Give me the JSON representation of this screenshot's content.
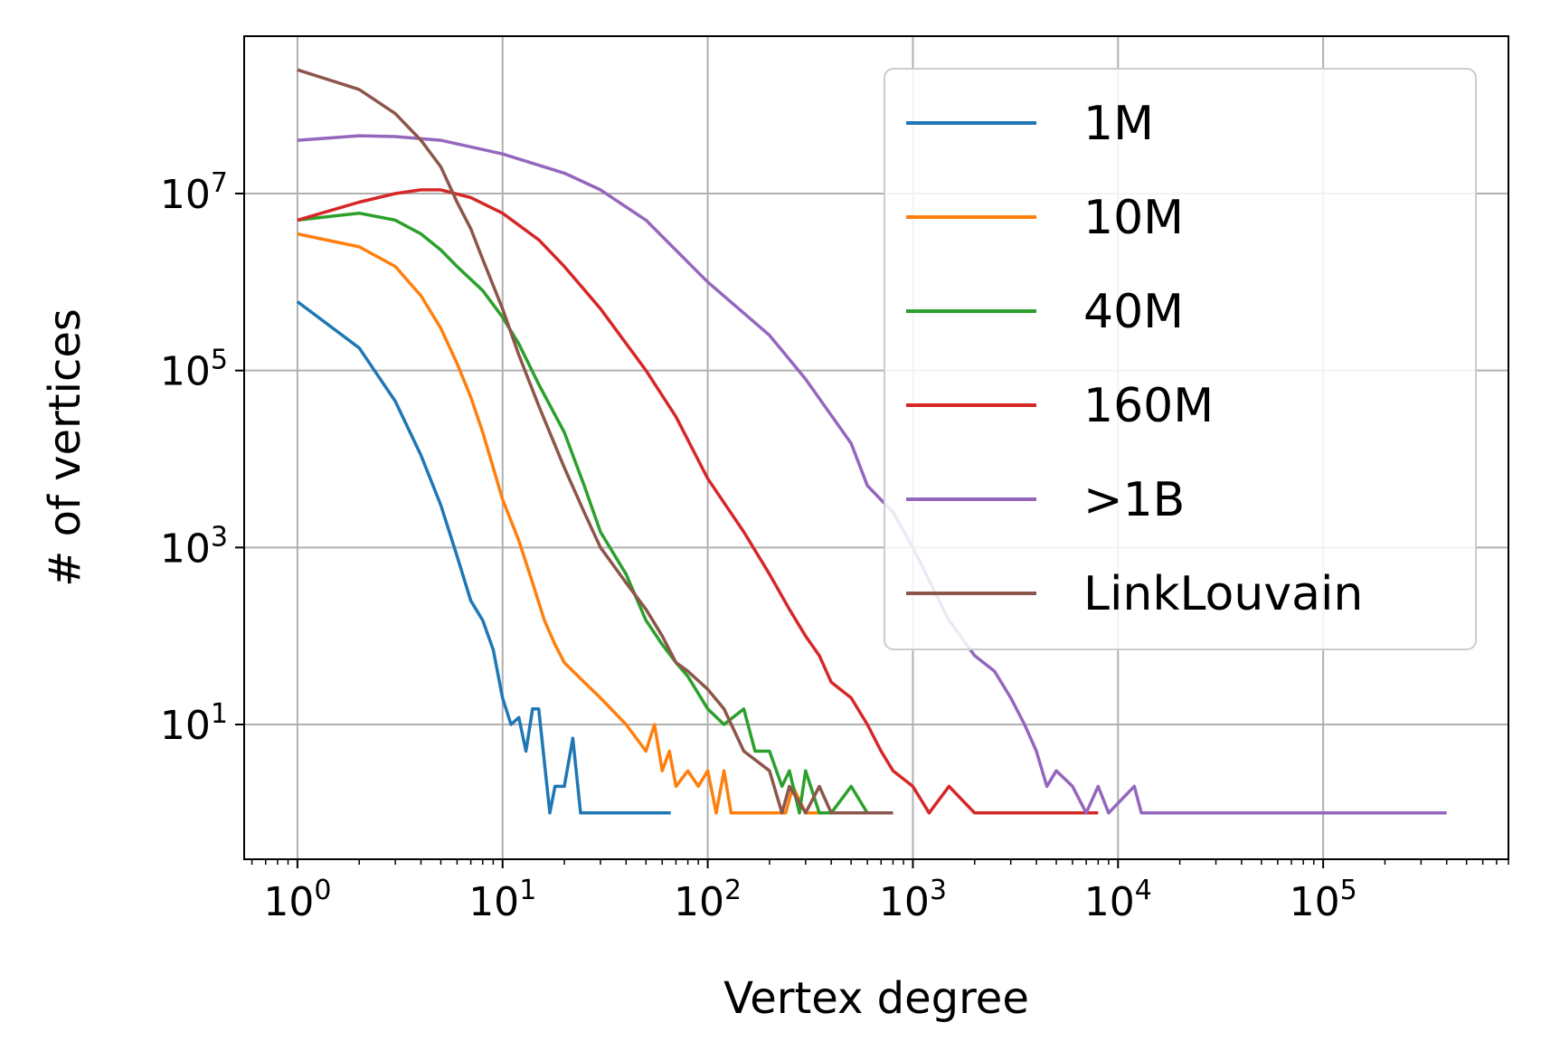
{
  "chart_data": {
    "type": "line",
    "title": "",
    "xlabel": "Vertex degree",
    "ylabel": "# of vertices",
    "xscale": "log",
    "yscale": "log",
    "xlim": [
      0.55,
      800000
    ],
    "ylim": [
      0.3,
      600000000
    ],
    "grid": true,
    "legend_position": "top-right",
    "x_ticks": [
      {
        "value": 1,
        "base": "10",
        "exp": "0"
      },
      {
        "value": 10,
        "base": "10",
        "exp": "1"
      },
      {
        "value": 100,
        "base": "10",
        "exp": "2"
      },
      {
        "value": 1000,
        "base": "10",
        "exp": "3"
      },
      {
        "value": 10000,
        "base": "10",
        "exp": "4"
      },
      {
        "value": 100000,
        "base": "10",
        "exp": "5"
      }
    ],
    "y_ticks": [
      {
        "value": 10,
        "base": "10",
        "exp": "1"
      },
      {
        "value": 1000,
        "base": "10",
        "exp": "3"
      },
      {
        "value": 100000,
        "base": "10",
        "exp": "5"
      },
      {
        "value": 10000000,
        "base": "10",
        "exp": "7"
      }
    ],
    "series": [
      {
        "name": "1M",
        "color": "#1f77b4",
        "points": [
          [
            1,
            600000
          ],
          [
            2,
            180000
          ],
          [
            3,
            45000
          ],
          [
            4,
            11000
          ],
          [
            5,
            3000
          ],
          [
            6,
            800
          ],
          [
            7,
            250
          ],
          [
            8,
            150
          ],
          [
            9,
            70
          ],
          [
            10,
            20
          ],
          [
            11,
            10
          ],
          [
            12,
            12
          ],
          [
            13,
            5
          ],
          [
            14,
            15
          ],
          [
            15,
            15
          ],
          [
            17,
            1
          ],
          [
            18,
            2
          ],
          [
            20,
            2
          ],
          [
            22,
            7
          ],
          [
            24,
            1
          ],
          [
            26,
            1
          ],
          [
            66,
            1
          ]
        ]
      },
      {
        "name": "10M",
        "color": "#ff7f0e",
        "points": [
          [
            1,
            3500000
          ],
          [
            2,
            2500000
          ],
          [
            3,
            1500000
          ],
          [
            4,
            700000
          ],
          [
            5,
            300000
          ],
          [
            6,
            120000
          ],
          [
            7,
            50000
          ],
          [
            8,
            20000
          ],
          [
            9,
            8000
          ],
          [
            10,
            3500
          ],
          [
            12,
            1200
          ],
          [
            14,
            400
          ],
          [
            16,
            150
          ],
          [
            18,
            80
          ],
          [
            20,
            50
          ],
          [
            25,
            30
          ],
          [
            30,
            20
          ],
          [
            40,
            10
          ],
          [
            50,
            5
          ],
          [
            55,
            10
          ],
          [
            60,
            3
          ],
          [
            65,
            5
          ],
          [
            70,
            2
          ],
          [
            80,
            3
          ],
          [
            90,
            2
          ],
          [
            100,
            3
          ],
          [
            110,
            1
          ],
          [
            120,
            3
          ],
          [
            130,
            1
          ],
          [
            240,
            1
          ],
          [
            260,
            2
          ],
          [
            300,
            1
          ],
          [
            500,
            1
          ]
        ]
      },
      {
        "name": "40M",
        "color": "#2ca02c",
        "points": [
          [
            1,
            5000000
          ],
          [
            2,
            6000000
          ],
          [
            3,
            5000000
          ],
          [
            4,
            3500000
          ],
          [
            5,
            2300000
          ],
          [
            6,
            1500000
          ],
          [
            8,
            800000
          ],
          [
            10,
            400000
          ],
          [
            12,
            200000
          ],
          [
            15,
            70000
          ],
          [
            20,
            20000
          ],
          [
            25,
            5000
          ],
          [
            30,
            1500
          ],
          [
            40,
            500
          ],
          [
            50,
            150
          ],
          [
            60,
            80
          ],
          [
            70,
            50
          ],
          [
            80,
            35
          ],
          [
            100,
            15
          ],
          [
            120,
            10
          ],
          [
            150,
            15
          ],
          [
            170,
            5
          ],
          [
            200,
            5
          ],
          [
            230,
            2
          ],
          [
            250,
            3
          ],
          [
            280,
            1
          ],
          [
            300,
            3
          ],
          [
            350,
            1
          ],
          [
            400,
            1
          ],
          [
            500,
            2
          ],
          [
            600,
            1
          ],
          [
            800,
            1
          ]
        ]
      },
      {
        "name": "160M",
        "color": "#d62728",
        "points": [
          [
            1,
            5000000
          ],
          [
            2,
            8000000
          ],
          [
            3,
            10000000
          ],
          [
            4,
            11000000
          ],
          [
            5,
            11000000
          ],
          [
            7,
            9000000
          ],
          [
            10,
            6000000
          ],
          [
            15,
            3000000
          ],
          [
            20,
            1500000
          ],
          [
            30,
            500000
          ],
          [
            50,
            100000
          ],
          [
            70,
            30000
          ],
          [
            100,
            6000
          ],
          [
            150,
            1500
          ],
          [
            200,
            500
          ],
          [
            250,
            200
          ],
          [
            300,
            100
          ],
          [
            350,
            60
          ],
          [
            400,
            30
          ],
          [
            500,
            20
          ],
          [
            600,
            10
          ],
          [
            700,
            5
          ],
          [
            800,
            3
          ],
          [
            1000,
            2
          ],
          [
            1200,
            1
          ],
          [
            1500,
            2
          ],
          [
            2000,
            1
          ],
          [
            3000,
            1
          ],
          [
            5000,
            1
          ],
          [
            8000,
            1
          ]
        ]
      },
      {
        "name": ">1B",
        "color": "#9467bd",
        "points": [
          [
            1,
            40000000
          ],
          [
            2,
            45000000
          ],
          [
            3,
            44000000
          ],
          [
            5,
            40000000
          ],
          [
            10,
            28000000
          ],
          [
            20,
            17000000
          ],
          [
            30,
            11000000
          ],
          [
            50,
            5000000
          ],
          [
            100,
            1000000
          ],
          [
            200,
            250000
          ],
          [
            300,
            80000
          ],
          [
            500,
            15000
          ],
          [
            600,
            5000
          ],
          [
            800,
            2500
          ],
          [
            1000,
            1000
          ],
          [
            1500,
            150
          ],
          [
            2000,
            60
          ],
          [
            2500,
            40
          ],
          [
            3000,
            20
          ],
          [
            3500,
            10
          ],
          [
            4000,
            5
          ],
          [
            4500,
            2
          ],
          [
            5000,
            3
          ],
          [
            6000,
            2
          ],
          [
            7000,
            1
          ],
          [
            8000,
            2
          ],
          [
            9000,
            1
          ],
          [
            12000,
            2
          ],
          [
            13000,
            1
          ],
          [
            100000,
            1
          ],
          [
            400000,
            1
          ]
        ]
      },
      {
        "name": "LinkLouvain",
        "color": "#8c564b",
        "points": [
          [
            1,
            250000000
          ],
          [
            2,
            150000000
          ],
          [
            3,
            80000000
          ],
          [
            4,
            40000000
          ],
          [
            5,
            20000000
          ],
          [
            6,
            8000000
          ],
          [
            7,
            4000000
          ],
          [
            8,
            1800000
          ],
          [
            10,
            500000
          ],
          [
            12,
            150000
          ],
          [
            15,
            40000
          ],
          [
            20,
            8000
          ],
          [
            25,
            2500
          ],
          [
            30,
            1000
          ],
          [
            40,
            400
          ],
          [
            50,
            200
          ],
          [
            60,
            100
          ],
          [
            70,
            50
          ],
          [
            80,
            40
          ],
          [
            100,
            25
          ],
          [
            120,
            15
          ],
          [
            150,
            5
          ],
          [
            200,
            3
          ],
          [
            230,
            1
          ],
          [
            250,
            2
          ],
          [
            300,
            1
          ],
          [
            350,
            2
          ],
          [
            400,
            1
          ],
          [
            500,
            1
          ],
          [
            600,
            1
          ],
          [
            800,
            1
          ]
        ]
      }
    ]
  }
}
